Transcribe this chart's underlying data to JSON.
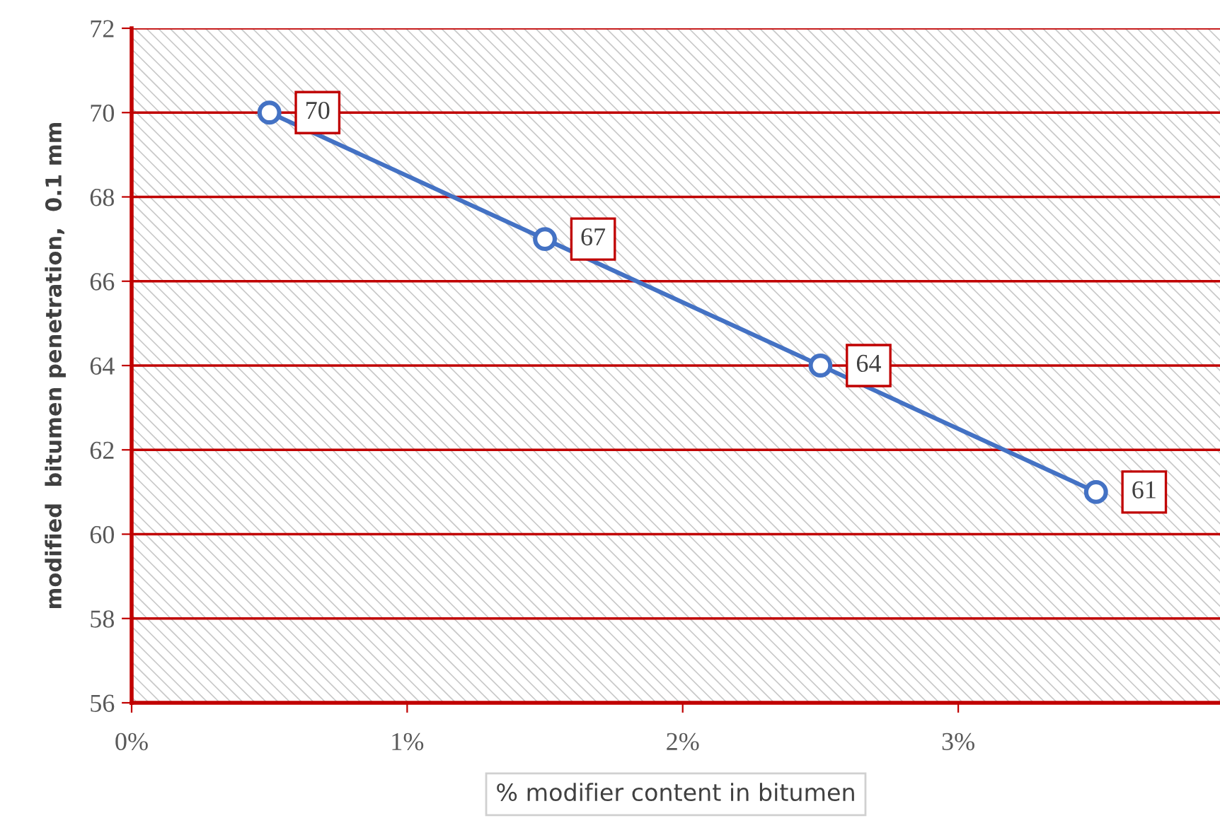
{
  "chart_data": {
    "type": "line",
    "xlabel": "% modifier content in bitumen",
    "ylabel": "modified  bitumen penetration,  0.1 mm",
    "x": [
      0.5,
      1.5,
      2.5,
      3.5
    ],
    "series": [
      {
        "color": "#4472c4",
        "values": [
          70,
          67,
          64,
          61
        ]
      }
    ],
    "xlim": [
      0,
      3.95
    ],
    "xticks": [
      {
        "value": 0,
        "label": "0%"
      },
      {
        "value": 1,
        "label": "1%"
      },
      {
        "value": 2,
        "label": "2%"
      },
      {
        "value": 3,
        "label": "3%"
      }
    ],
    "ylim": [
      56,
      72
    ],
    "yticks": [
      56,
      58,
      60,
      62,
      64,
      66,
      68,
      70,
      72
    ],
    "grid": "y",
    "marker": "circle",
    "line_style": "solid",
    "data_labels": true,
    "legend": false
  }
}
